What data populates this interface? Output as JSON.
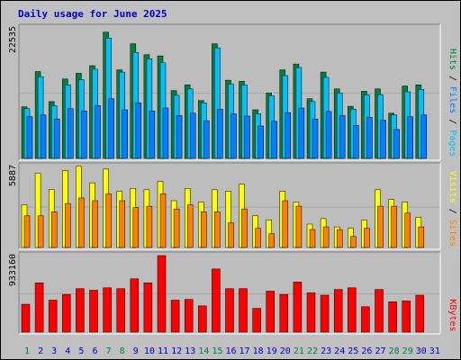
{
  "title": "Daily usage for June 2025",
  "colors": {
    "background": "#c0c0c0",
    "panel": "#bdbdbd",
    "hits": "#008040",
    "files": "#00c0ff",
    "pages": "#0080ff",
    "visits": "#ffff00",
    "sites": "#ff8000",
    "kbytes": "#ff0000",
    "title": "#0000cc",
    "weekend_label": "#008040",
    "weekday_label": "#0000cc"
  },
  "chart_data": [
    {
      "type": "bar",
      "name": "hits-files-pages",
      "ymax_label": "22535",
      "ylim": [
        0,
        22535
      ],
      "legend": [
        {
          "text": "Pages",
          "color": "#00c0ff"
        },
        {
          "text": "Files",
          "color": "#0080ff"
        },
        {
          "text": "Hits",
          "color": "#008040"
        }
      ],
      "x": [
        1,
        2,
        3,
        4,
        5,
        6,
        7,
        8,
        9,
        10,
        11,
        12,
        13,
        14,
        15,
        16,
        17,
        18,
        19,
        20,
        21,
        22,
        23,
        24,
        25,
        26,
        27,
        28,
        29,
        30,
        31
      ],
      "series": [
        {
          "name": "Hits",
          "values": [
            8900,
            15000,
            9800,
            13700,
            14700,
            16000,
            21800,
            15300,
            19800,
            17900,
            17700,
            11700,
            12700,
            10000,
            19800,
            13500,
            13300,
            8400,
            11300,
            15300,
            16300,
            10300,
            14900,
            12000,
            9000,
            11600,
            12000,
            7800,
            12500,
            12700,
            0
          ]
        },
        {
          "name": "Files",
          "values": [
            8600,
            14100,
            9100,
            12700,
            13600,
            15400,
            20800,
            14900,
            18300,
            17200,
            16500,
            10900,
            12000,
            9600,
            19100,
            12800,
            12700,
            7700,
            10800,
            14300,
            15700,
            9800,
            14000,
            11300,
            8500,
            11000,
            11000,
            7500,
            11500,
            11900,
            0
          ]
        },
        {
          "name": "Pages",
          "values": [
            7200,
            7500,
            6800,
            8600,
            8200,
            9100,
            10300,
            8400,
            9600,
            8200,
            8700,
            7400,
            7800,
            6500,
            8500,
            7700,
            7300,
            5600,
            6400,
            7900,
            8700,
            6800,
            8100,
            7400,
            5700,
            7100,
            6600,
            5000,
            7200,
            7500,
            0
          ]
        }
      ]
    },
    {
      "type": "bar",
      "name": "visits-sites",
      "ymax_label": "5887",
      "ylim": [
        0,
        5887
      ],
      "legend": [
        {
          "text": "Sites",
          "color": "#ff8000"
        },
        {
          "text": "Visits",
          "color": "#ffff00"
        }
      ],
      "x": [
        1,
        2,
        3,
        4,
        5,
        6,
        7,
        8,
        9,
        10,
        11,
        12,
        13,
        14,
        15,
        16,
        17,
        18,
        19,
        20,
        21,
        22,
        23,
        24,
        25,
        26,
        27,
        28,
        29,
        30,
        31
      ],
      "series": [
        {
          "name": "Visits",
          "values": [
            3100,
            5400,
            4200,
            5600,
            5900,
            4700,
            5700,
            4100,
            4300,
            4200,
            4800,
            3400,
            4300,
            3300,
            4200,
            4100,
            4600,
            2300,
            2000,
            4100,
            3300,
            1700,
            2100,
            1500,
            1400,
            2000,
            4200,
            3500,
            3300,
            2200,
            0
          ]
        },
        {
          "name": "Sites",
          "values": [
            2300,
            2300,
            2600,
            3200,
            3600,
            3400,
            3900,
            3400,
            2900,
            3000,
            3900,
            2800,
            3100,
            2600,
            2600,
            1800,
            2800,
            1400,
            1000,
            3400,
            3000,
            1300,
            1500,
            1300,
            800,
            1400,
            3000,
            3000,
            2500,
            1500,
            0
          ]
        }
      ]
    },
    {
      "type": "bar",
      "name": "kbytes",
      "ymax_label": "933160",
      "ylim": [
        0,
        933160
      ],
      "legend": [
        {
          "text": "KBytes",
          "color": "#ff0000"
        }
      ],
      "x": [
        1,
        2,
        3,
        4,
        5,
        6,
        7,
        8,
        9,
        10,
        11,
        12,
        13,
        14,
        15,
        16,
        17,
        18,
        19,
        20,
        21,
        22,
        23,
        24,
        25,
        26,
        27,
        28,
        29,
        30,
        31
      ],
      "series": [
        {
          "name": "KBytes",
          "values": [
            340000,
            600000,
            390000,
            460000,
            530000,
            510000,
            540000,
            530000,
            650000,
            600000,
            933160,
            390000,
            400000,
            320000,
            770000,
            530000,
            530000,
            290000,
            500000,
            460000,
            610000,
            480000,
            450000,
            520000,
            540000,
            310000,
            520000,
            370000,
            380000,
            450000,
            0
          ]
        }
      ]
    }
  ],
  "x_labels": [
    {
      "text": "1",
      "weekend": true
    },
    {
      "text": "2",
      "weekend": false
    },
    {
      "text": "3",
      "weekend": false
    },
    {
      "text": "4",
      "weekend": false
    },
    {
      "text": "5",
      "weekend": false
    },
    {
      "text": "6",
      "weekend": false
    },
    {
      "text": "7",
      "weekend": true
    },
    {
      "text": "8",
      "weekend": true
    },
    {
      "text": "9",
      "weekend": false
    },
    {
      "text": "10",
      "weekend": false
    },
    {
      "text": "11",
      "weekend": false
    },
    {
      "text": "12",
      "weekend": false
    },
    {
      "text": "13",
      "weekend": false
    },
    {
      "text": "14",
      "weekend": true
    },
    {
      "text": "15",
      "weekend": true
    },
    {
      "text": "16",
      "weekend": false
    },
    {
      "text": "17",
      "weekend": false
    },
    {
      "text": "18",
      "weekend": false
    },
    {
      "text": "19",
      "weekend": false
    },
    {
      "text": "20",
      "weekend": false
    },
    {
      "text": "21",
      "weekend": true
    },
    {
      "text": "22",
      "weekend": true
    },
    {
      "text": "23",
      "weekend": false
    },
    {
      "text": "24",
      "weekend": false
    },
    {
      "text": "25",
      "weekend": false
    },
    {
      "text": "26",
      "weekend": false
    },
    {
      "text": "27",
      "weekend": false
    },
    {
      "text": "28",
      "weekend": true
    },
    {
      "text": "29",
      "weekend": true
    },
    {
      "text": "30",
      "weekend": false
    },
    {
      "text": "31",
      "weekend": false
    }
  ]
}
